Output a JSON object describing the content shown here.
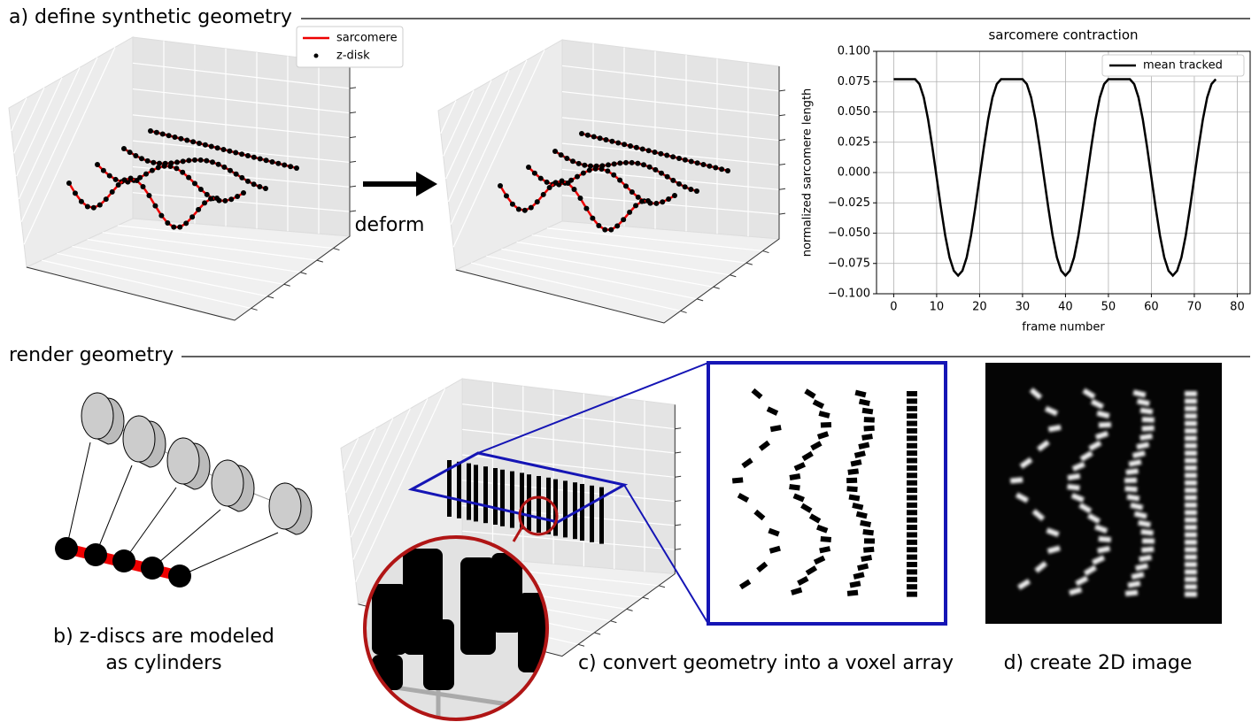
{
  "section_a": {
    "title": "a) define synthetic geometry",
    "legend": [
      "sarcomere",
      "z-disk"
    ],
    "arrow_label": "deform"
  },
  "section_render": {
    "title": "render geometry",
    "caption_b": [
      "b) z-discs are modeled",
      "as cylinders"
    ],
    "caption_c": "c) convert geometry into a voxel array",
    "caption_d": "d) create 2D image"
  },
  "chart_data": {
    "type": "line",
    "title": "sarcomere contraction",
    "xlabel": "frame number",
    "ylabel": "normalized sarcomere length",
    "x": [
      0,
      5,
      6,
      7,
      8,
      9,
      10,
      11,
      12,
      13,
      14,
      15,
      16,
      17,
      18,
      19,
      20,
      21,
      22,
      23,
      24,
      25,
      30,
      31,
      32,
      33,
      34,
      35,
      36,
      37,
      38,
      39,
      40,
      41,
      42,
      43,
      44,
      45,
      46,
      47,
      48,
      49,
      50,
      55,
      56,
      57,
      58,
      59,
      60,
      61,
      62,
      63,
      64,
      65,
      66,
      67,
      68,
      69,
      70,
      71,
      72,
      73,
      74,
      75
    ],
    "series": [
      {
        "name": "mean tracked",
        "color": "#000000",
        "values": [
          0.077,
          0.077,
          0.073,
          0.062,
          0.044,
          0.021,
          -0.004,
          -0.029,
          -0.052,
          -0.07,
          -0.081,
          -0.085,
          -0.081,
          -0.07,
          -0.052,
          -0.029,
          -0.004,
          0.021,
          0.044,
          0.062,
          0.073,
          0.077,
          0.077,
          0.073,
          0.062,
          0.044,
          0.021,
          -0.004,
          -0.029,
          -0.052,
          -0.07,
          -0.081,
          -0.085,
          -0.081,
          -0.07,
          -0.052,
          -0.029,
          -0.004,
          0.021,
          0.044,
          0.062,
          0.073,
          0.077,
          0.077,
          0.073,
          0.062,
          0.044,
          0.021,
          -0.004,
          -0.029,
          -0.052,
          -0.07,
          -0.081,
          -0.085,
          -0.081,
          -0.07,
          -0.052,
          -0.029,
          -0.004,
          0.021,
          0.044,
          0.062,
          0.073,
          0.077
        ]
      }
    ],
    "xlim": [
      -4,
      83
    ],
    "ylim": [
      -0.1,
      0.1
    ],
    "xticks": [
      0,
      10,
      20,
      30,
      40,
      50,
      60,
      70,
      80
    ],
    "yticks": [
      {
        "value": -0.1,
        "label": "−0.100"
      },
      {
        "value": -0.075,
        "label": "−0.075"
      },
      {
        "value": -0.05,
        "label": "−0.050"
      },
      {
        "value": -0.025,
        "label": "−0.025"
      },
      {
        "value": 0,
        "label": "0.000"
      },
      {
        "value": 0.025,
        "label": "0.025"
      },
      {
        "value": 0.05,
        "label": "0.050"
      },
      {
        "value": 0.075,
        "label": "0.075"
      },
      {
        "value": 0.1,
        "label": "0.100"
      }
    ],
    "grid": true,
    "legend": "upper right"
  }
}
